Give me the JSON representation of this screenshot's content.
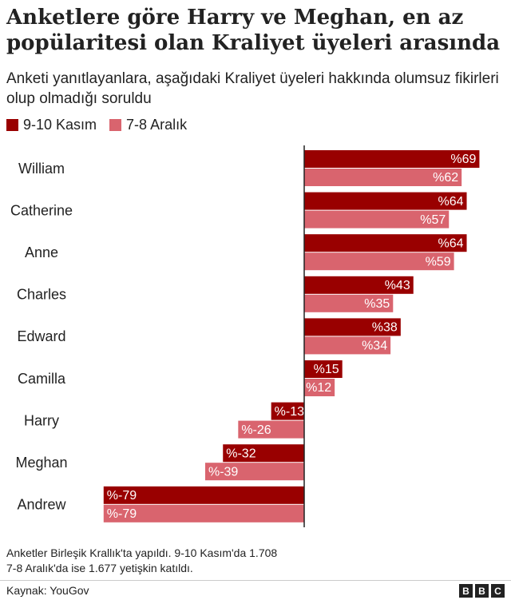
{
  "title": "Anketlere göre Harry ve Meghan, en az popülaritesi olan Kraliyet üyeleri arasında",
  "subtitle": "Anketi yanıtlayanlara, aşağıdaki Kraliyet üyeleri hakkında olumsuz fikirleri olup olmadığı soruldu",
  "chart_data": {
    "type": "bar",
    "orientation": "horizontal",
    "title": "Anketlere göre Harry ve Meghan, en az popülaritesi olan Kraliyet üyeleri arasında",
    "subtitle": "Anketi yanıtlayanlara, aşağıdaki Kraliyet üyeleri hakkında olumsuz fikirleri olup olmadığı soruldu",
    "categories": [
      "William",
      "Catherine",
      "Anne",
      "Charles",
      "Edward",
      "Camilla",
      "Harry",
      "Meghan",
      "Andrew"
    ],
    "series": [
      {
        "name": "9-10 Kasım",
        "color": "#990000",
        "values": [
          69,
          64,
          64,
          43,
          38,
          15,
          -13,
          -32,
          -79
        ]
      },
      {
        "name": "7-8 Aralık",
        "color": "#d9646e",
        "values": [
          62,
          57,
          59,
          35,
          34,
          12,
          -26,
          -39,
          -79
        ]
      }
    ],
    "value_prefix": "%",
    "xlim": [
      -79,
      69
    ],
    "grid": false,
    "legend_position": "top-left"
  },
  "note": {
    "line1": "Anketler Birleşik Krallık'ta yapıldı. 9-10 Kasım'da 1.708",
    "line2": "7-8 Aralık'da ise 1.677 yetişkin katıldı."
  },
  "source": "Kaynak: YouGov",
  "logo": {
    "letters": [
      "B",
      "B",
      "C"
    ]
  }
}
